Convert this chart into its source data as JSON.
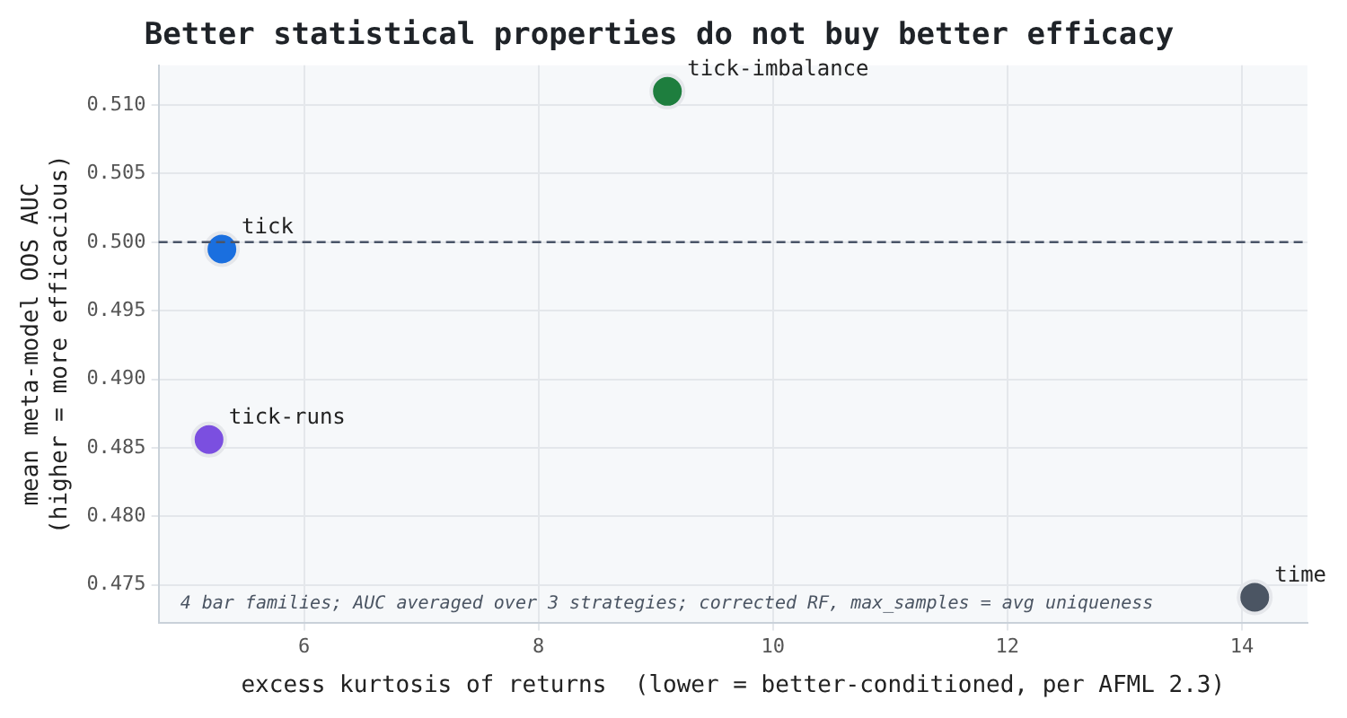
{
  "chart_data": {
    "type": "scatter",
    "title": "Better statistical properties do not buy better efficacy",
    "xlabel": "excess kurtosis of returns  (lower = better-conditioned, per AFML 2.3)",
    "ylabel": "mean meta-model OOS AUC\n(higher = more efficacious)",
    "series": [
      {
        "name": "tick",
        "color": "#1a6fdf",
        "x": [
          5.3
        ],
        "values": [
          0.4995
        ]
      },
      {
        "name": "tick-imbalance",
        "color": "#1e7e3e",
        "x": [
          9.1
        ],
        "values": [
          0.511
        ]
      },
      {
        "name": "tick-runs",
        "color": "#7b4fe0",
        "x": [
          5.19
        ],
        "values": [
          0.4856
        ]
      },
      {
        "name": "time",
        "color": "#4b5563",
        "x": [
          14.11
        ],
        "values": [
          0.4741
        ]
      }
    ],
    "xlim": [
      4.76,
      14.56
    ],
    "ylim": [
      0.4722,
      0.5129
    ],
    "xticks": [
      6,
      8,
      10,
      12,
      14
    ],
    "yticks": [
      {
        "value": 0.475,
        "label": "0.475"
      },
      {
        "value": 0.48,
        "label": "0.480"
      },
      {
        "value": 0.485,
        "label": "0.485"
      },
      {
        "value": 0.49,
        "label": "0.490"
      },
      {
        "value": 0.495,
        "label": "0.495"
      },
      {
        "value": 0.5,
        "label": "0.500"
      },
      {
        "value": 0.505,
        "label": "0.505"
      },
      {
        "value": 0.51,
        "label": "0.510"
      }
    ],
    "ref_lines": [
      {
        "axis": "y",
        "value": 0.5,
        "color": "#4a5568",
        "line_style": "dashed"
      }
    ],
    "annotations": [
      "4 bar families; AUC averaged over 3 strategies; corrected RF, max_samples = avg uniqueness"
    ],
    "grid": true,
    "legend": false,
    "marker": "circle"
  }
}
